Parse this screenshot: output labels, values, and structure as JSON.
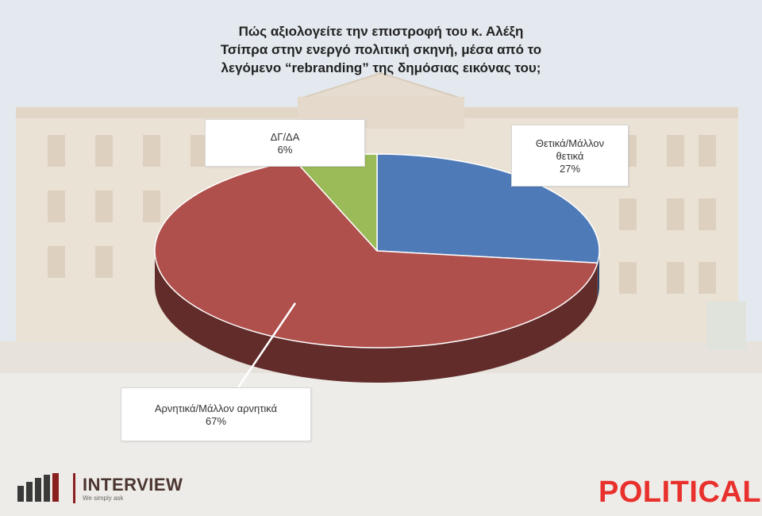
{
  "chart_data": {
    "type": "pie",
    "title": [
      "Πώς αξιολογείτε την επιστροφή του κ. Αλέξη",
      "Τσίπρα στην ενεργό πολιτική σκηνή, μέσα από το",
      "λεγόμενο “rebranding” της δημόσιας εικόνας του;"
    ],
    "slices": [
      {
        "label": "Θετικά/Μάλλον θετικά",
        "label_lines": [
          "Θετικά/Μάλλον",
          "θετικά"
        ],
        "value": 27,
        "value_label": "27%",
        "color": "#4f7ab8"
      },
      {
        "label": "Αρνητικά/Μάλλον αρνητικά",
        "label_lines": [
          "Αρνητικά/Μάλλον αρνητικά"
        ],
        "value": 67,
        "value_label": "67%",
        "color": "#b0504c"
      },
      {
        "label": "ΔΓ/ΔΑ",
        "label_lines": [
          "ΔΓ/ΔΑ"
        ],
        "value": 6,
        "value_label": "6%",
        "color": "#9bbb59"
      }
    ],
    "start_angle_deg": -90,
    "direction": "clockwise",
    "style": "3d"
  },
  "branding": {
    "left_logo": {
      "name": "INTERVIEW",
      "tagline": "We simply ask"
    },
    "right_logo": {
      "name": "POLITICAL"
    }
  }
}
